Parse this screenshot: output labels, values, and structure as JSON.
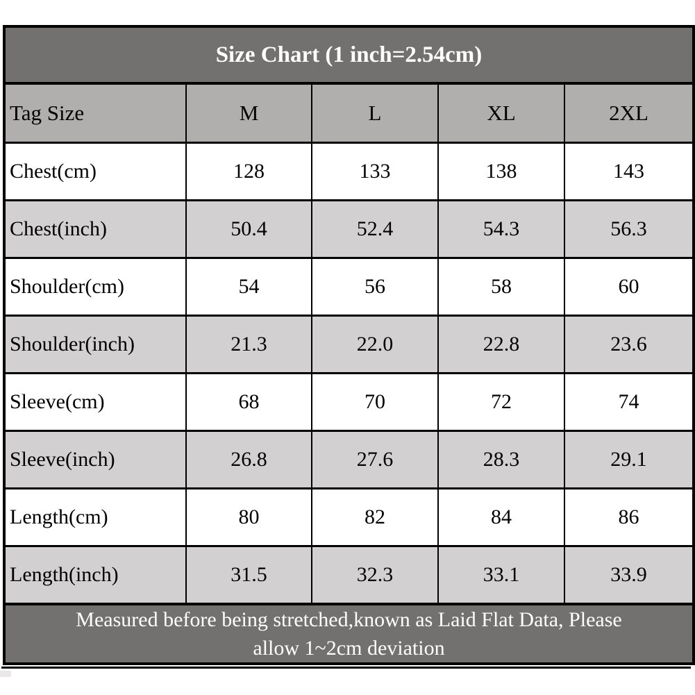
{
  "colors": {
    "title_bar_bg": "#737070",
    "column_header_bg": "#b1aeae",
    "alt_row_bg": "#d2d0d0",
    "row_bg": "#ffffff",
    "grid_border": "#000000",
    "title_text": "#ffffff",
    "body_text": "#000000"
  },
  "chart_data": {
    "type": "table",
    "title": "Size Chart (1 inch=2.54cm)",
    "columns": [
      "Tag Size",
      "M",
      "L",
      "XL",
      "2XL"
    ],
    "rows": [
      {
        "label": "Chest(cm)",
        "values": [
          "128",
          "133",
          "138",
          "143"
        ]
      },
      {
        "label": "Chest(inch)",
        "values": [
          "50.4",
          "52.4",
          "54.3",
          "56.3"
        ]
      },
      {
        "label": "Shoulder(cm)",
        "values": [
          "54",
          "56",
          "58",
          "60"
        ]
      },
      {
        "label": "Shoulder(inch)",
        "values": [
          "21.3",
          "22.0",
          "22.8",
          "23.6"
        ]
      },
      {
        "label": "Sleeve(cm)",
        "values": [
          "68",
          "70",
          "72",
          "74"
        ]
      },
      {
        "label": "Sleeve(inch)",
        "values": [
          "26.8",
          "27.6",
          "28.3",
          "29.1"
        ]
      },
      {
        "label": "Length(cm)",
        "values": [
          "80",
          "82",
          "84",
          "86"
        ]
      },
      {
        "label": "Length(inch)",
        "values": [
          "31.5",
          "32.3",
          "33.1",
          "33.9"
        ]
      }
    ],
    "footer_line1": "Measured before being stretched,known as Laid Flat Data, Please",
    "footer_line2": "allow 1~2cm deviation",
    "layout": {
      "grid": true,
      "row_striping": "white/gray alternating",
      "first_column_align": "left",
      "value_align": "center"
    }
  }
}
